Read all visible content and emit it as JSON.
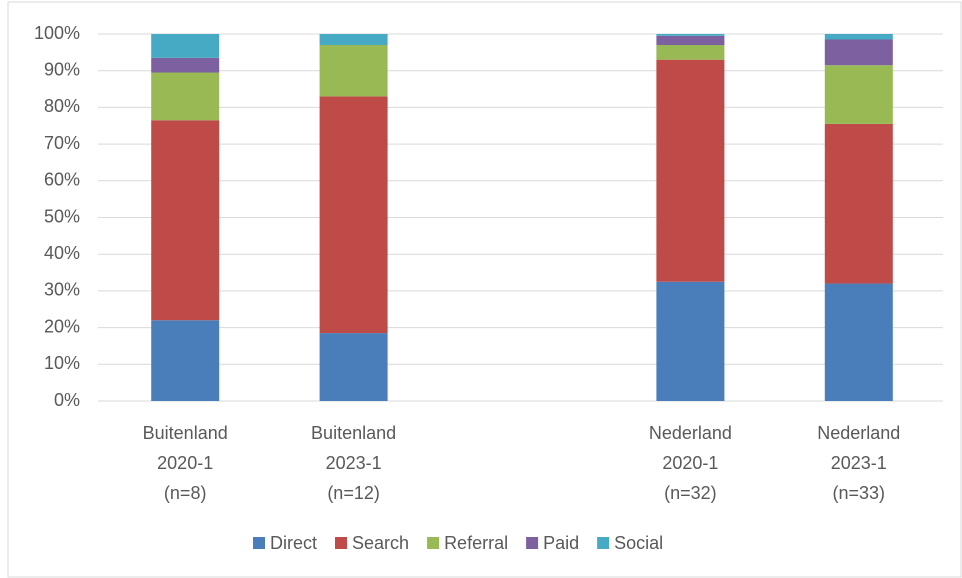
{
  "chart_data": {
    "type": "stacked_bar",
    "categories": [
      [
        "Buitenland",
        "2020-1",
        "(n=8)"
      ],
      [
        "Buitenland",
        "2023-1",
        "(n=12)"
      ],
      null,
      [
        "Nederland",
        "2020-1",
        "(n=32)"
      ],
      [
        "Nederland",
        "2023-1",
        "(n=33)"
      ]
    ],
    "series": [
      {
        "name": "Direct",
        "color": "#4a7ebb",
        "values": [
          22,
          18.5,
          null,
          32.5,
          32
        ]
      },
      {
        "name": "Search",
        "color": "#be4b48",
        "values": [
          54.5,
          64.5,
          null,
          60.5,
          43.5
        ]
      },
      {
        "name": "Referral",
        "color": "#98b954",
        "values": [
          13,
          14,
          null,
          4,
          16
        ]
      },
      {
        "name": "Paid",
        "color": "#7d60a0",
        "values": [
          4,
          0,
          null,
          2.5,
          7
        ]
      },
      {
        "name": "Social",
        "color": "#46aac5",
        "values": [
          6.5,
          3,
          null,
          0.5,
          1.5
        ]
      }
    ],
    "ylim": [
      0,
      100
    ],
    "yticks": [
      {
        "value": 0,
        "label": "0%"
      },
      {
        "value": 10,
        "label": "10%"
      },
      {
        "value": 20,
        "label": "20%"
      },
      {
        "value": 30,
        "label": "30%"
      },
      {
        "value": 40,
        "label": "40%"
      },
      {
        "value": 50,
        "label": "50%"
      },
      {
        "value": 60,
        "label": "60%"
      },
      {
        "value": 70,
        "label": "70%"
      },
      {
        "value": 80,
        "label": "80%"
      },
      {
        "value": 90,
        "label": "90%"
      },
      {
        "value": 100,
        "label": "100%"
      }
    ],
    "grid": true,
    "legend": "bottom"
  }
}
